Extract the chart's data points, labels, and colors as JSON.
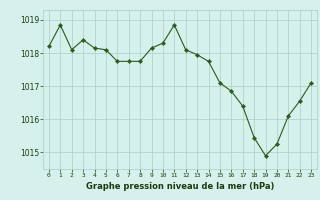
{
  "x": [
    0,
    1,
    2,
    3,
    4,
    5,
    6,
    7,
    8,
    9,
    10,
    11,
    12,
    13,
    14,
    15,
    16,
    17,
    18,
    19,
    20,
    21,
    22,
    23
  ],
  "y": [
    1018.2,
    1018.85,
    1018.1,
    1018.4,
    1018.15,
    1018.1,
    1017.75,
    1017.75,
    1017.75,
    1018.15,
    1018.3,
    1018.85,
    1018.1,
    1017.95,
    1017.75,
    1017.1,
    1016.85,
    1016.4,
    1015.45,
    1014.9,
    1015.25,
    1016.1,
    1016.55,
    1017.1
  ],
  "line_color": "#2d5a1e",
  "marker_color": "#2d5a1e",
  "bg_color": "#d6f0eb",
  "grid_color": "#a8cfc8",
  "xlabel": "Graphe pression niveau de la mer (hPa)",
  "xlabel_color": "#1a3a10",
  "tick_color": "#1a3a10",
  "ylim": [
    1014.5,
    1019.3
  ],
  "yticks": [
    1015,
    1016,
    1017,
    1018,
    1019
  ],
  "xticks": [
    0,
    1,
    2,
    3,
    4,
    5,
    6,
    7,
    8,
    9,
    10,
    11,
    12,
    13,
    14,
    15,
    16,
    17,
    18,
    19,
    20,
    21,
    22,
    23
  ]
}
